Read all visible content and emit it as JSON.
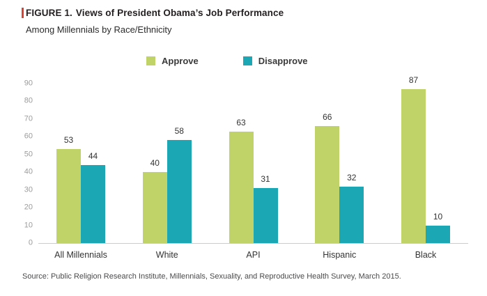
{
  "header": {
    "figure_label": "FIGURE 1.",
    "title": "Views of President Obama’s Job Performance",
    "subtitle": "Among Millennials by Race/Ethnicity",
    "accent_color": "#e0402f"
  },
  "legend": [
    {
      "label": "Approve",
      "color": "#c0d368"
    },
    {
      "label": "Disapprove",
      "color": "#1ca7b4"
    }
  ],
  "chart_data": {
    "type": "bar",
    "title": "Views of President Obama's Job Performance",
    "subtitle": "Among Millennials by Race/Ethnicity",
    "categories": [
      "All Millennials",
      "White",
      "API",
      "Hispanic",
      "Black"
    ],
    "series": [
      {
        "name": "Approve",
        "color": "#c0d368",
        "values": [
          53,
          40,
          63,
          66,
          87
        ]
      },
      {
        "name": "Disapprove",
        "color": "#1ca7b4",
        "values": [
          44,
          58,
          31,
          32,
          10
        ]
      }
    ],
    "xlabel": "",
    "ylabel": "",
    "ylim": [
      0,
      90
    ],
    "yticks": [
      0,
      10,
      20,
      30,
      40,
      50,
      60,
      70,
      80,
      90
    ],
    "grid": false,
    "legend_position": "top",
    "value_labels": true,
    "axis_line_color": "#cccccc",
    "tick_label_color": "#9b9b9b"
  },
  "source": "Source: Public Religion Research Institute, Millennials, Sexuality, and Reproductive Health Survey, March 2015."
}
